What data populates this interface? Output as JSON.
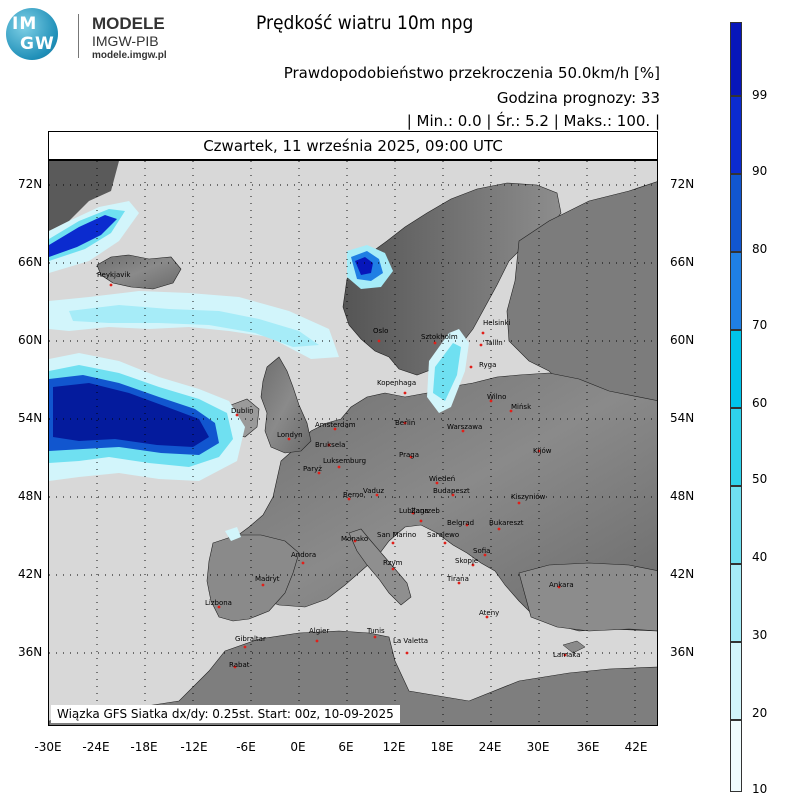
{
  "logo": {
    "mark_top": "IM",
    "mark_bottom": "GW",
    "name": "MODELE",
    "org": "IMGW-PIB",
    "site": "modele.imgw.pl"
  },
  "title": "Prędkość wiatru 10m npg",
  "info": {
    "line1": "Prawdopodobieństwo przekroczenia 50.0km/h [%]",
    "line2": "Godzina prognozy: 33",
    "line3": "| Min.:     0.0 | Śr.:     5.2 | Maks.:    100. |"
  },
  "date": "Czwartek, 11 września 2025, 09:00 UTC",
  "footer": "Wiązka GFS Siatka dx/dy: 0.25st. Start: 00z, 10-09-2025",
  "lat_labels": [
    "72N",
    "66N",
    "60N",
    "54N",
    "48N",
    "42N",
    "36N"
  ],
  "lon_labels": [
    "-30E",
    "-24E",
    "-18E",
    "-12E",
    "-6E",
    "0E",
    "6E",
    "12E",
    "18E",
    "24E",
    "30E",
    "36E",
    "42E"
  ],
  "colorbar": {
    "colors": [
      "#f0fcfe",
      "#d2f5fb",
      "#a6ecf8",
      "#6fe0f1",
      "#2fd2ec",
      "#00c4ea",
      "#1f7fe4",
      "#1156cf",
      "#0b2bcf",
      "#0716ba",
      "#041b9d"
    ],
    "labels": [
      "10",
      "20",
      "30",
      "40",
      "50",
      "60",
      "70",
      "80",
      "90",
      "99"
    ]
  },
  "cities": [
    "Reykjavik",
    "Oslo",
    "Sztokholm",
    "Helsinki",
    "Tallin",
    "Ryga",
    "Kopenhaga",
    "Wilno",
    "Mińsk",
    "Dublin",
    "Amsterdam",
    "Londyn",
    "Bruksela",
    "Luksemburg",
    "Berlin",
    "Warszawa",
    "Praga",
    "Kijów",
    "Paryż",
    "Wiedeń",
    "Budapeszt",
    "Berno",
    "Vaduz",
    "Lubljana",
    "Zagrzeb",
    "Kiszyniów",
    "Belgrad",
    "Bukareszt",
    "Monako",
    "San Marino",
    "Sarajewo",
    "Sofia",
    "Andora",
    "Rzym",
    "Skopje",
    "Tirana",
    "Madryt",
    "Ankara",
    "Lizbona",
    "Ateny",
    "Algier",
    "Tunis",
    "La Valetta",
    "Gibraltar",
    "Lamaka",
    "Rabat"
  ]
}
